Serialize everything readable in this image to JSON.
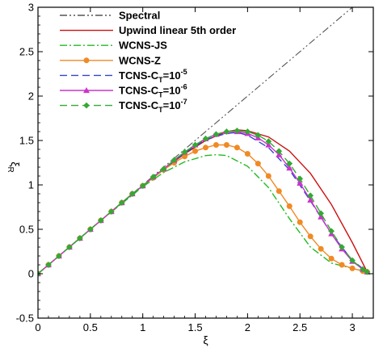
{
  "chart_data": {
    "type": "line",
    "title": "",
    "xlabel": "ξ",
    "ylabel": "ξ",
    "ylabel_sub": "R",
    "xlim": [
      0,
      3.2
    ],
    "ylim": [
      -0.5,
      3
    ],
    "xticks": [
      0,
      0.5,
      1,
      1.5,
      2,
      2.5,
      3
    ],
    "yticks": [
      -0.5,
      0,
      0.5,
      1,
      1.5,
      2,
      2.5,
      3
    ],
    "grid": false,
    "legend_position": "top-left",
    "series": [
      {
        "name": "Spectral",
        "color": "#555555",
        "dash": "dash-dot-dot",
        "marker": "none",
        "x": [
          0,
          3.1416
        ],
        "y": [
          0,
          3.1416
        ]
      },
      {
        "name": "Upwind linear 5th order",
        "color": "#cc1111",
        "dash": "solid",
        "marker": "none",
        "x": [
          0,
          0.2,
          0.4,
          0.6,
          0.8,
          1.0,
          1.2,
          1.4,
          1.6,
          1.8,
          1.9,
          2.0,
          2.2,
          2.4,
          2.6,
          2.8,
          3.0,
          3.1416
        ],
        "y": [
          0,
          0.2,
          0.4,
          0.6,
          0.8,
          0.99,
          1.18,
          1.35,
          1.5,
          1.6,
          1.62,
          1.61,
          1.54,
          1.38,
          1.13,
          0.78,
          0.35,
          0.02
        ]
      },
      {
        "name": "WCNS-JS",
        "color": "#22bb22",
        "dash": "dash-dot",
        "marker": "none",
        "x": [
          0,
          0.2,
          0.4,
          0.6,
          0.8,
          1.0,
          1.2,
          1.4,
          1.6,
          1.7,
          1.8,
          2.0,
          2.2,
          2.4,
          2.6,
          2.8,
          3.0,
          3.1416
        ],
        "y": [
          0,
          0.2,
          0.4,
          0.6,
          0.79,
          0.98,
          1.14,
          1.26,
          1.33,
          1.34,
          1.33,
          1.21,
          0.97,
          0.62,
          0.3,
          0.12,
          0.06,
          0.02
        ]
      },
      {
        "name": "WCNS-Z",
        "color": "#f08a24",
        "dash": "solid",
        "marker": "circle",
        "x": [
          0,
          0.1,
          0.2,
          0.3,
          0.4,
          0.5,
          0.6,
          0.7,
          0.8,
          0.9,
          1.0,
          1.1,
          1.2,
          1.3,
          1.4,
          1.5,
          1.6,
          1.7,
          1.8,
          1.9,
          2.0,
          2.1,
          2.2,
          2.3,
          2.4,
          2.5,
          2.6,
          2.7,
          2.8,
          2.9,
          3.0,
          3.1,
          3.1416
        ],
        "y": [
          0,
          0.1,
          0.2,
          0.3,
          0.4,
          0.5,
          0.6,
          0.7,
          0.8,
          0.9,
          0.99,
          1.08,
          1.17,
          1.25,
          1.32,
          1.38,
          1.42,
          1.45,
          1.45,
          1.42,
          1.35,
          1.24,
          1.1,
          0.93,
          0.76,
          0.58,
          0.42,
          0.28,
          0.17,
          0.1,
          0.06,
          0.03,
          0.02
        ]
      },
      {
        "name": "TCNS-CT=10-5",
        "label_main": "TCNS-C",
        "label_sub": "T",
        "label_eq": "=10",
        "label_sup": "-5",
        "color": "#3344cc",
        "dash": "dashed",
        "marker": "none",
        "x": [
          0,
          0.2,
          0.4,
          0.6,
          0.8,
          1.0,
          1.2,
          1.4,
          1.6,
          1.8,
          1.9,
          2.0,
          2.2,
          2.4,
          2.6,
          2.8,
          3.0,
          3.1416
        ],
        "y": [
          0,
          0.2,
          0.4,
          0.6,
          0.8,
          0.99,
          1.18,
          1.36,
          1.51,
          1.58,
          1.59,
          1.56,
          1.42,
          1.17,
          0.82,
          0.45,
          0.15,
          0.02
        ]
      },
      {
        "name": "TCNS-CT=10-6",
        "label_main": "TCNS-C",
        "label_sub": "T",
        "label_eq": "=10",
        "label_sup": "-6",
        "color": "#cc33cc",
        "dash": "solid",
        "marker": "triangle",
        "x": [
          0,
          0.1,
          0.2,
          0.3,
          0.4,
          0.5,
          0.6,
          0.7,
          0.8,
          0.9,
          1.0,
          1.1,
          1.2,
          1.3,
          1.4,
          1.5,
          1.6,
          1.7,
          1.8,
          1.9,
          2.0,
          2.1,
          2.2,
          2.3,
          2.4,
          2.5,
          2.6,
          2.7,
          2.8,
          2.9,
          3.0,
          3.1,
          3.1416
        ],
        "y": [
          0,
          0.1,
          0.2,
          0.3,
          0.4,
          0.5,
          0.6,
          0.7,
          0.8,
          0.9,
          0.99,
          1.09,
          1.18,
          1.28,
          1.37,
          1.45,
          1.52,
          1.57,
          1.6,
          1.6,
          1.58,
          1.53,
          1.45,
          1.34,
          1.19,
          1.02,
          0.83,
          0.64,
          0.45,
          0.28,
          0.14,
          0.05,
          0.02
        ]
      },
      {
        "name": "TCNS-CT=10-7",
        "label_main": "TCNS-C",
        "label_sub": "T",
        "label_eq": "=10",
        "label_sup": "-7",
        "color": "#33aa33",
        "dash": "dashed",
        "marker": "diamond",
        "x": [
          0,
          0.1,
          0.2,
          0.3,
          0.4,
          0.5,
          0.6,
          0.7,
          0.8,
          0.9,
          1.0,
          1.1,
          1.2,
          1.3,
          1.4,
          1.5,
          1.6,
          1.7,
          1.8,
          1.9,
          2.0,
          2.1,
          2.2,
          2.3,
          2.4,
          2.5,
          2.6,
          2.7,
          2.8,
          2.9,
          3.0,
          3.1,
          3.1416
        ],
        "y": [
          0,
          0.1,
          0.2,
          0.3,
          0.4,
          0.5,
          0.6,
          0.7,
          0.8,
          0.9,
          0.99,
          1.09,
          1.18,
          1.28,
          1.37,
          1.45,
          1.52,
          1.57,
          1.6,
          1.61,
          1.6,
          1.56,
          1.49,
          1.38,
          1.24,
          1.07,
          0.88,
          0.68,
          0.48,
          0.3,
          0.15,
          0.05,
          0.02
        ]
      }
    ]
  }
}
